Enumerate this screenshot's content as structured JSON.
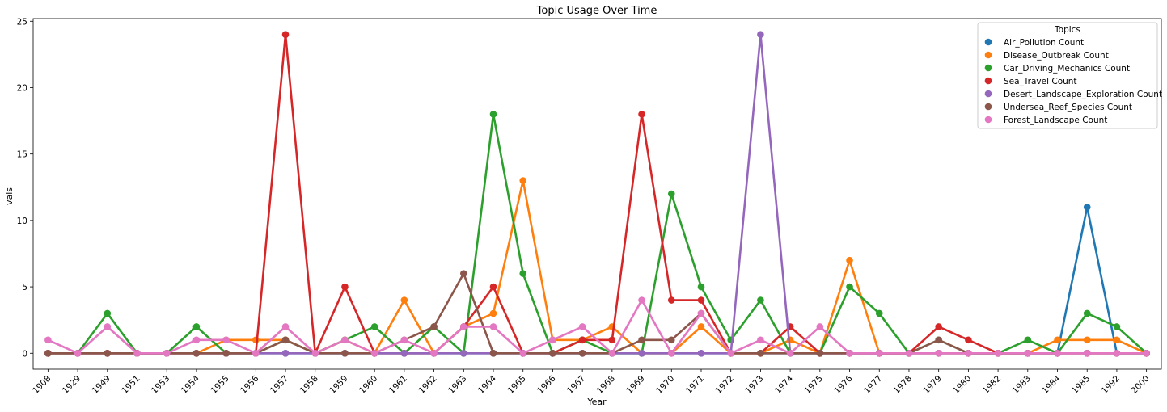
{
  "chart_data": {
    "type": "line",
    "title": "Topic Usage Over Time",
    "xlabel": "Year",
    "ylabel": "vals",
    "ylim": [
      -1.2,
      25.2
    ],
    "yticks": [
      0,
      5,
      10,
      15,
      20,
      25
    ],
    "grid": false,
    "legend": {
      "title": "Topics",
      "placement": "top-right"
    },
    "categories": [
      "1908",
      "1929",
      "1949",
      "1951",
      "1953",
      "1954",
      "1955",
      "1956",
      "1957",
      "1958",
      "1959",
      "1960",
      "1961",
      "1962",
      "1963",
      "1964",
      "1965",
      "1966",
      "1967",
      "1968",
      "1969",
      "1970",
      "1971",
      "1972",
      "1973",
      "1974",
      "1975",
      "1976",
      "1977",
      "1978",
      "1979",
      "1980",
      "1982",
      "1983",
      "1984",
      "1985",
      "1992",
      "2000"
    ],
    "series": [
      {
        "name": "Air_Pollution Count",
        "color": "#1f77b4",
        "values": [
          0,
          0,
          0,
          0,
          0,
          0,
          0,
          0,
          0,
          0,
          0,
          0,
          0,
          0,
          0,
          0,
          0,
          0,
          0,
          0,
          0,
          0,
          0,
          0,
          0,
          0,
          0,
          0,
          0,
          0,
          0,
          0,
          0,
          0,
          0,
          11,
          0,
          0
        ]
      },
      {
        "name": "Disease_Outbreak Count",
        "color": "#ff7f0e",
        "values": [
          0,
          0,
          0,
          0,
          0,
          0,
          1,
          1,
          1,
          0,
          1,
          0,
          4,
          0,
          2,
          3,
          13,
          1,
          1,
          2,
          0,
          0,
          2,
          0,
          0,
          1,
          0,
          7,
          0,
          0,
          0,
          0,
          0,
          0,
          1,
          1,
          1,
          0
        ]
      },
      {
        "name": "Car_Driving_Mechanics Count",
        "color": "#2ca02c",
        "values": [
          0,
          0,
          3,
          0,
          0,
          2,
          0,
          0,
          1,
          0,
          1,
          2,
          0,
          2,
          0,
          18,
          6,
          0,
          1,
          0,
          0,
          12,
          5,
          1,
          4,
          0,
          0,
          5,
          3,
          0,
          1,
          0,
          0,
          1,
          0,
          3,
          2,
          0
        ]
      },
      {
        "name": "Sea_Travel Count",
        "color": "#d62728",
        "values": [
          0,
          0,
          0,
          0,
          0,
          0,
          0,
          0,
          24,
          0,
          5,
          0,
          0,
          0,
          2,
          5,
          0,
          0,
          1,
          1,
          18,
          4,
          4,
          0,
          0,
          2,
          0,
          0,
          0,
          0,
          2,
          1,
          0,
          0,
          0,
          0,
          0,
          0
        ]
      },
      {
        "name": "Desert_Landscape_Exploration Count",
        "color": "#9467bd",
        "values": [
          0,
          0,
          0,
          0,
          0,
          0,
          0,
          0,
          0,
          0,
          0,
          0,
          0,
          0,
          0,
          0,
          0,
          0,
          0,
          0,
          0,
          0,
          0,
          0,
          24,
          0,
          0,
          0,
          0,
          0,
          0,
          0,
          0,
          0,
          0,
          0,
          0,
          0
        ]
      },
      {
        "name": "Undersea_Reef_Species Count",
        "color": "#8c564b",
        "values": [
          0,
          0,
          0,
          0,
          0,
          0,
          0,
          0,
          1,
          0,
          0,
          0,
          1,
          2,
          6,
          0,
          0,
          0,
          0,
          0,
          1,
          1,
          3,
          0,
          0,
          0,
          0,
          0,
          0,
          0,
          1,
          0,
          0,
          0,
          0,
          0,
          0,
          0
        ]
      },
      {
        "name": "Forest_Landscape Count",
        "color": "#e377c2",
        "values": [
          1,
          0,
          2,
          0,
          0,
          1,
          1,
          0,
          2,
          0,
          1,
          0,
          1,
          0,
          2,
          2,
          0,
          1,
          2,
          0,
          4,
          0,
          3,
          0,
          1,
          0,
          2,
          0,
          0,
          0,
          0,
          0,
          0,
          0,
          0,
          0,
          0,
          0
        ]
      }
    ]
  }
}
